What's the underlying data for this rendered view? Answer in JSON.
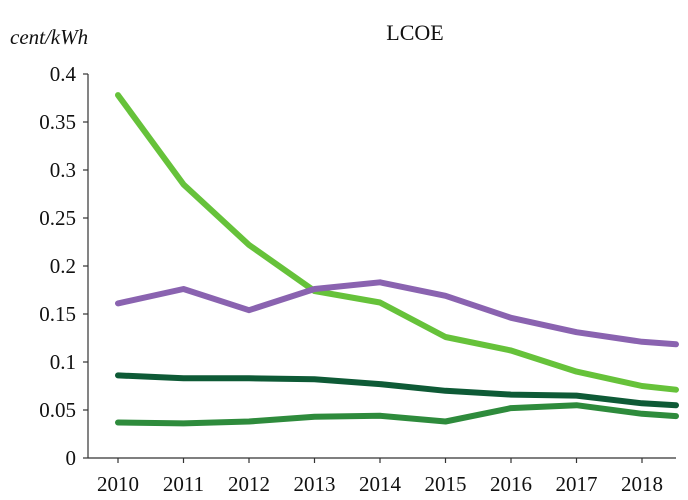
{
  "chart_data": {
    "type": "line",
    "title": "LCOE",
    "ylabel": "cent/kWh",
    "xlabel": "",
    "ylim": [
      0,
      0.4
    ],
    "yticks": [
      "0",
      "0.05",
      "0.1",
      "0.15",
      "0.2",
      "0.25",
      "0.3",
      "0.35",
      "0.4"
    ],
    "categories": [
      "2010",
      "2011",
      "2012",
      "2013",
      "2014",
      "2015",
      "2016",
      "2017",
      "2018"
    ],
    "grid": false,
    "legend": "none",
    "series": [
      {
        "color": "#66c23a",
        "values": [
          0.378,
          0.285,
          0.222,
          0.174,
          0.162,
          0.126,
          0.112,
          0.09,
          0.075
        ]
      },
      {
        "color": "#8a63b0",
        "values": [
          0.161,
          0.176,
          0.154,
          0.176,
          0.183,
          0.169,
          0.146,
          0.131,
          0.121
        ]
      },
      {
        "color": "#0e5a36",
        "values": [
          0.086,
          0.083,
          0.083,
          0.082,
          0.077,
          0.07,
          0.066,
          0.065,
          0.057
        ]
      },
      {
        "color": "#2e8b3c",
        "values": [
          0.037,
          0.036,
          0.038,
          0.043,
          0.044,
          0.038,
          0.052,
          0.055,
          0.046
        ]
      }
    ]
  }
}
